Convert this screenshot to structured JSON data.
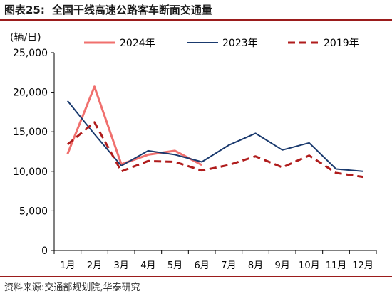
{
  "figure": {
    "label": "图表25:",
    "title": "全国干线高速公路客车断面交通量",
    "unit": "(辆/日)",
    "source": "资料来源:交通部规划院,华泰研究"
  },
  "chart_data": {
    "type": "line",
    "categories": [
      "1月",
      "2月",
      "3月",
      "4月",
      "5月",
      "6月",
      "7月",
      "8月",
      "9月",
      "10月",
      "11月",
      "12月"
    ],
    "ylim": [
      0,
      25000
    ],
    "yticks": [
      0,
      5000,
      10000,
      15000,
      20000,
      25000
    ],
    "ytick_labels": [
      "0",
      "5,000",
      "10,000",
      "15,000",
      "20,000",
      "25,000"
    ],
    "grid": false,
    "legend_position": "top",
    "series": [
      {
        "name": "2024年",
        "color": "#f0706e",
        "dash": "solid",
        "width": 3,
        "values": [
          12200,
          20700,
          10900,
          12100,
          12600,
          10800,
          null,
          null,
          null,
          null,
          null,
          null
        ]
      },
      {
        "name": "2023年",
        "color": "#1a3a6e",
        "dash": "solid",
        "width": 2,
        "values": [
          18900,
          14700,
          10700,
          12600,
          12100,
          11200,
          13300,
          14800,
          12700,
          13600,
          10300,
          10000
        ]
      },
      {
        "name": "2019年",
        "color": "#b01c1c",
        "dash": "dashed",
        "width": 3,
        "values": [
          13400,
          16200,
          10000,
          11300,
          11200,
          10100,
          10800,
          11900,
          10500,
          12000,
          9800,
          9300
        ]
      }
    ]
  }
}
